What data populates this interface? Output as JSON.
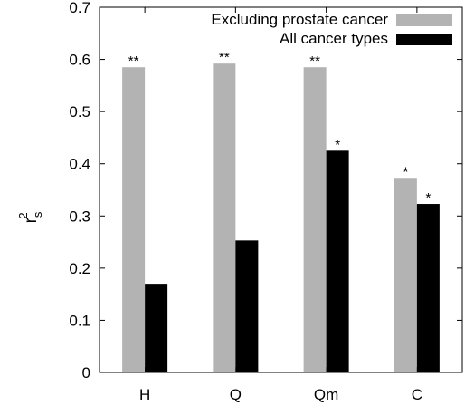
{
  "chart_data": {
    "type": "bar",
    "categories": [
      "H",
      "Q",
      "Qm",
      "C"
    ],
    "series": [
      {
        "name": "Excluding prostate cancer",
        "color": "#b3b3b3",
        "values": [
          0.585,
          0.592,
          0.585,
          0.373
        ],
        "significance": [
          "**",
          "**",
          "**",
          "*"
        ]
      },
      {
        "name": "All cancer types",
        "color": "#000000",
        "values": [
          0.17,
          0.253,
          0.425,
          0.323
        ],
        "significance": [
          "",
          "",
          "*",
          "*"
        ]
      }
    ],
    "ylabel": "r",
    "ylabel_superscript": "2",
    "ylabel_subscript": "s",
    "ylim": [
      0,
      0.7
    ],
    "yticks": [
      "0",
      "0.1",
      "0.2",
      "0.3",
      "0.4",
      "0.5",
      "0.6",
      "0.7"
    ],
    "grid": false,
    "legend_position": "top-right"
  }
}
